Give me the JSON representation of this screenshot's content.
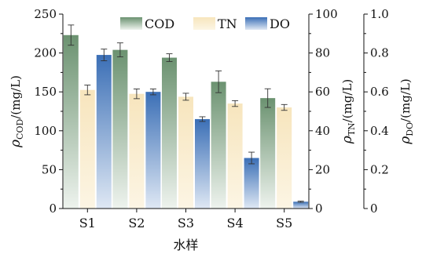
{
  "chart_data": {
    "type": "bar",
    "categories": [
      "S1",
      "S2",
      "S3",
      "S4",
      "S5"
    ],
    "xlabel": "水样",
    "series": [
      {
        "name": "COD",
        "axis": "left",
        "values": [
          223,
          204,
          194,
          163,
          142
        ],
        "errors": [
          13,
          9,
          5,
          14,
          12
        ],
        "color_top": "#6b9270",
        "color_bottom": "#eef3ee"
      },
      {
        "name": "TN",
        "axis": "right1",
        "values": [
          61,
          59,
          57.5,
          54,
          52
        ],
        "errors": [
          2.5,
          2.5,
          1.8,
          1.5,
          1.5
        ],
        "color_top": "#f7e5bd",
        "color_bottom": "#fcf5e4"
      },
      {
        "name": "DO",
        "axis": "right2",
        "values": [
          0.79,
          0.6,
          0.46,
          0.26,
          0.035
        ],
        "errors": [
          0.03,
          0.015,
          0.012,
          0.03,
          0.003
        ],
        "color_top": "#3b6fb6",
        "color_bottom": "#dfe8f4"
      }
    ],
    "axes": {
      "left": {
        "label_main": "ρ",
        "label_sub": "COD",
        "label_unit": "/(mg/L)",
        "ylim": [
          0,
          250
        ],
        "ticks": [
          "0",
          "50",
          "100",
          "150",
          "200",
          "250"
        ]
      },
      "right1": {
        "label_main": "ρ",
        "label_sub": "TN",
        "label_unit": "/(mg/L)",
        "ylim": [
          0,
          100
        ],
        "ticks": [
          "0",
          "20",
          "40",
          "60",
          "80",
          "100"
        ]
      },
      "right2": {
        "label_main": "ρ",
        "label_sub": "DO",
        "label_unit": "/(mg/L)",
        "ylim": [
          0,
          1.0
        ],
        "ticks": [
          "0",
          "0.2",
          "0.4",
          "0.6",
          "0.8",
          "1.0"
        ]
      }
    },
    "legend": {
      "placement": "top",
      "entries": [
        "COD",
        "TN",
        "DO"
      ]
    },
    "grid": false
  }
}
